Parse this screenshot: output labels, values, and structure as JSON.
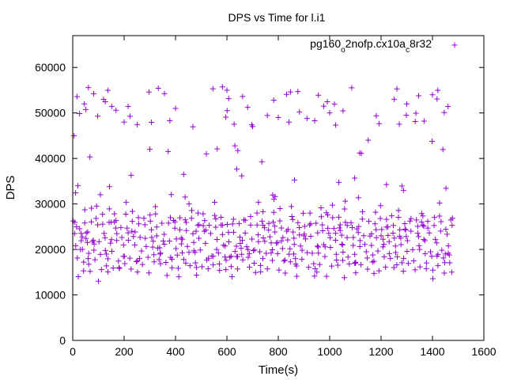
{
  "chart_data": {
    "type": "scatter",
    "title": "DPS vs Time for l.i1",
    "xlabel": "Time(s)",
    "ylabel": "DPS",
    "xlim": [
      0,
      1600
    ],
    "ylim": [
      0,
      67000
    ],
    "xticks": [
      0,
      200,
      400,
      600,
      800,
      1000,
      1200,
      1400,
      1600
    ],
    "yticks": [
      0,
      10000,
      20000,
      30000,
      40000,
      50000,
      60000
    ],
    "grid": false,
    "legend_position": "top-right",
    "marker": "+",
    "series": [
      {
        "name": "pg160_o2nofp.cx10a_c8r32",
        "legend_parts": [
          {
            "text": "pg160",
            "shift": "base"
          },
          {
            "text": "o",
            "shift": "sub"
          },
          {
            "text": "2nofp.cx10a",
            "shift": "base"
          },
          {
            "text": "c",
            "shift": "sub"
          },
          {
            "text": "8r32",
            "shift": "base"
          }
        ],
        "color": "#9400d3",
        "approx_time_range": [
          0,
          1480
        ],
        "approx_sampling_interval": 5,
        "low_band_sawtooth": {
          "low": 14000,
          "high": 27000,
          "period_s": 23
        },
        "upper_band_range": [
          28000,
          56000
        ],
        "sample_points": [
          [
            5,
            45000
          ],
          [
            15,
            25000
          ],
          [
            20,
            34000
          ],
          [
            30,
            20000
          ],
          [
            45,
            52000
          ],
          [
            60,
            18000
          ],
          [
            80,
            22000
          ],
          [
            100,
            13000
          ],
          [
            120,
            53000
          ],
          [
            150,
            26000
          ],
          [
            180,
            16000
          ],
          [
            200,
            48000
          ],
          [
            230,
            24000
          ],
          [
            260,
            18000
          ],
          [
            300,
            42000
          ],
          [
            340,
            19000
          ],
          [
            380,
            27000
          ],
          [
            400,
            51000
          ],
          [
            440,
            17000
          ],
          [
            480,
            24000
          ],
          [
            520,
            41000
          ],
          [
            560,
            20000
          ],
          [
            600,
            55000
          ],
          [
            620,
            14000
          ],
          [
            660,
            22000
          ],
          [
            700,
            47000
          ],
          [
            740,
            18000
          ],
          [
            780,
            26000
          ],
          [
            800,
            49000
          ],
          [
            860,
            19000
          ],
          [
            900,
            23000
          ],
          [
            950,
            15000
          ],
          [
            1000,
            50000
          ],
          [
            1050,
            21000
          ],
          [
            1100,
            17000
          ],
          [
            1150,
            44000
          ],
          [
            1200,
            23000
          ],
          [
            1250,
            16000
          ],
          [
            1300,
            52000
          ],
          [
            1350,
            20000
          ],
          [
            1400,
            54000
          ],
          [
            1450,
            19000
          ],
          [
            1475,
            15000
          ]
        ]
      }
    ]
  }
}
